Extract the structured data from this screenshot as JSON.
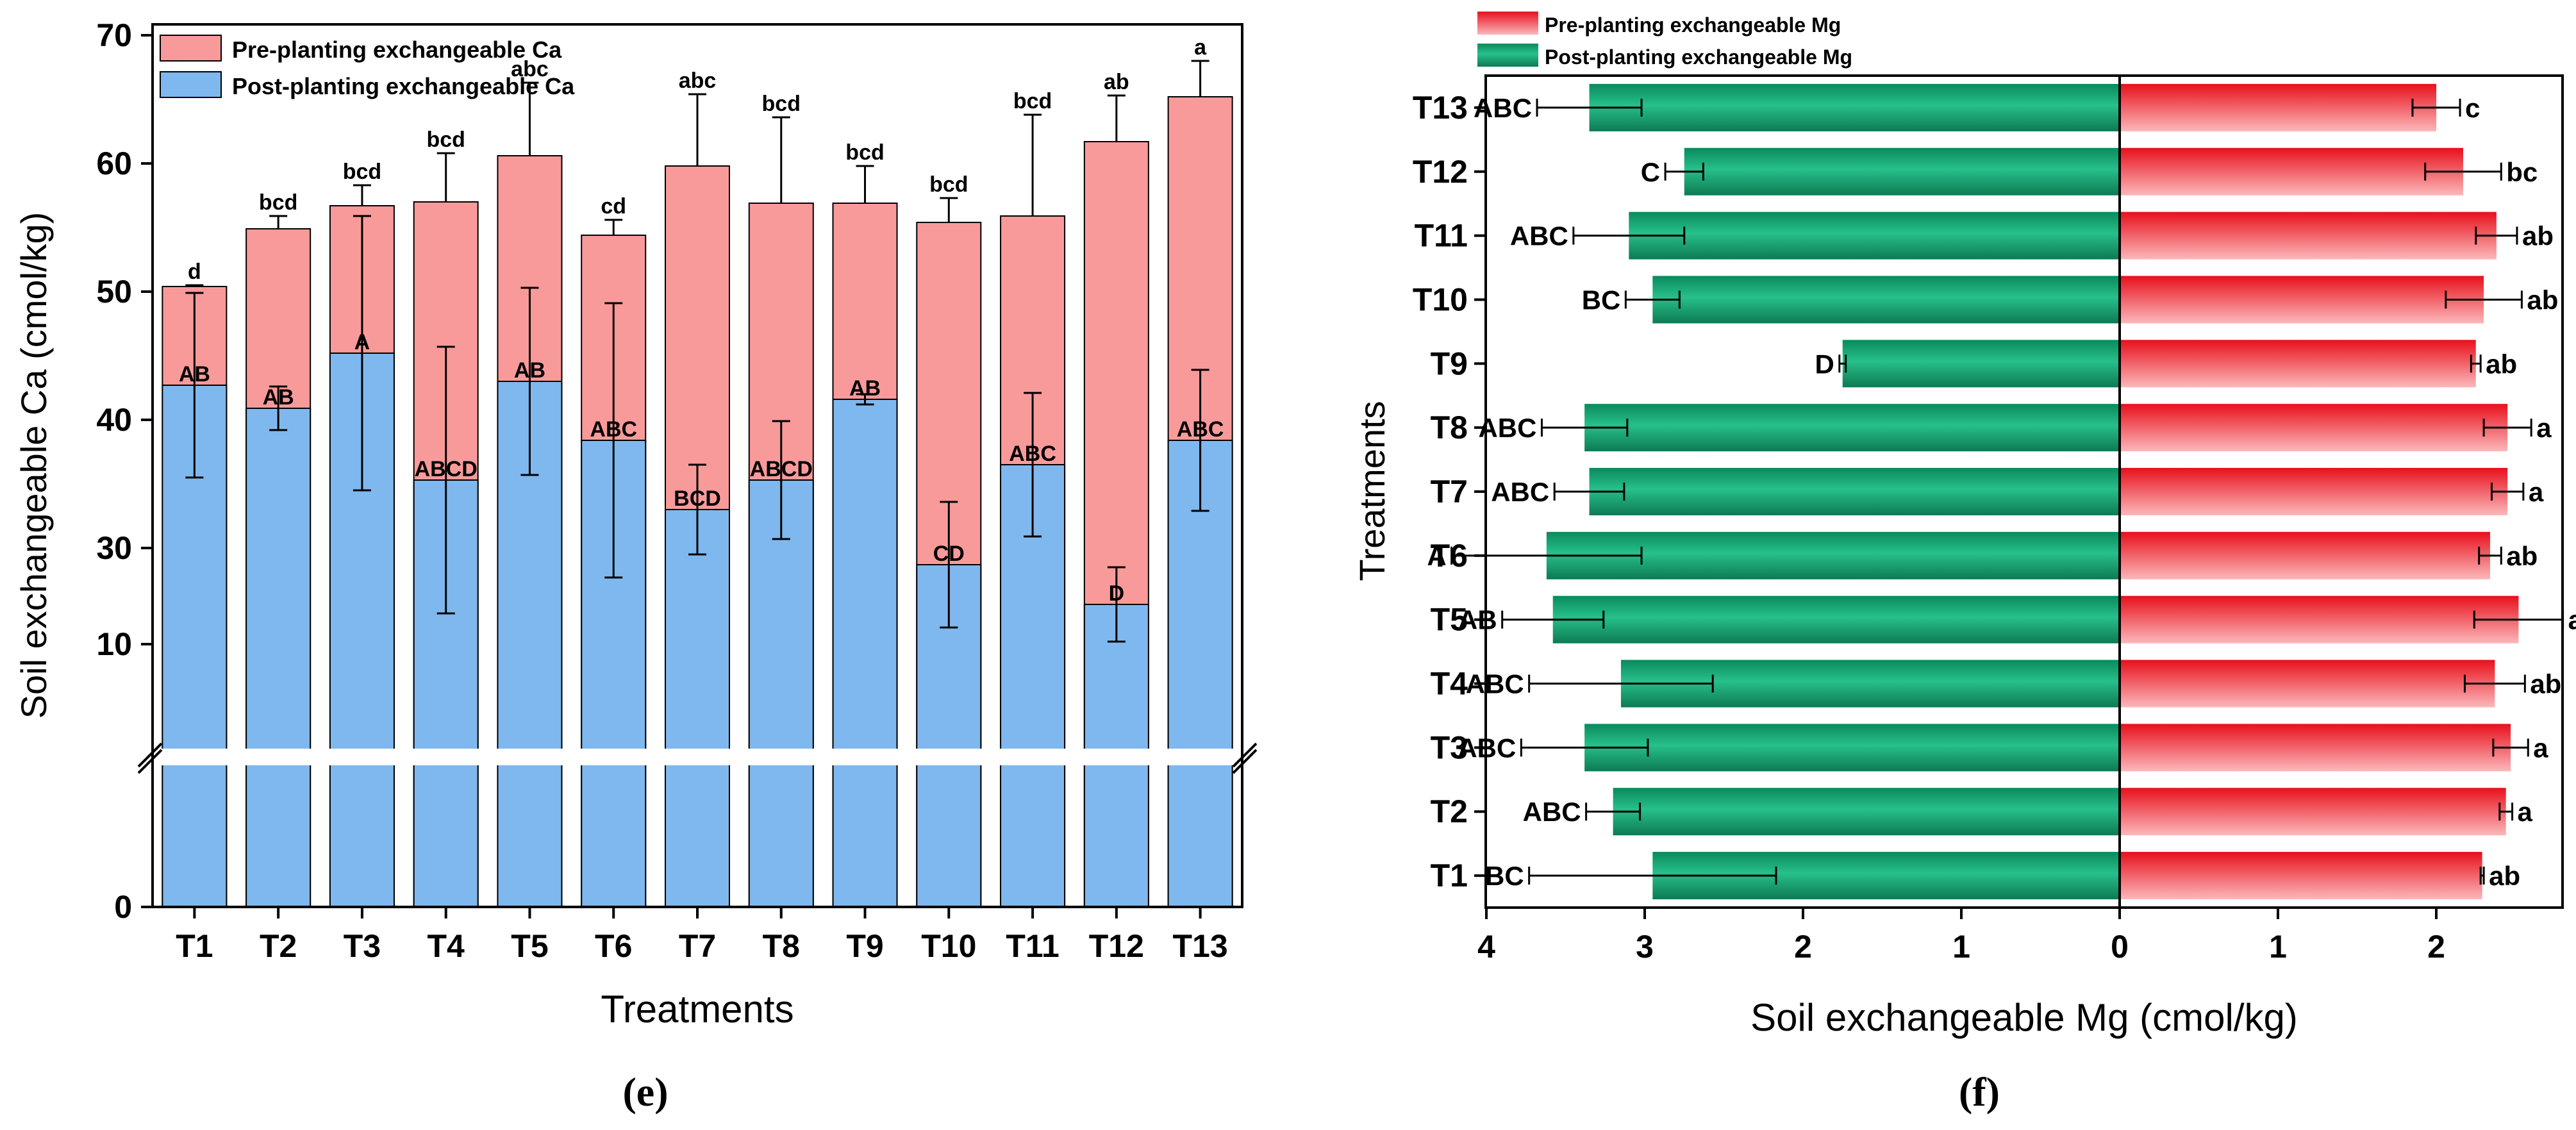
{
  "chart_data": [
    {
      "type": "bar",
      "panel_label": "(e)",
      "xlabel": "Treatments",
      "ylabel": "Soil exchangeable Ca (cmol/kg)",
      "axis_break": [
        10,
        20
      ],
      "ylim": [
        0,
        73
      ],
      "yticks": [
        0,
        10,
        30,
        40,
        50,
        60,
        70
      ],
      "categories": [
        "T1",
        "T2",
        "T3",
        "T4",
        "T5",
        "T6",
        "T7",
        "T8",
        "T9",
        "T10",
        "T11",
        "T12",
        "T13"
      ],
      "legend_position": "top-left",
      "series": [
        {
          "name": "Pre-planting exchangeable Ca",
          "color": "#f99a9a",
          "values": [
            50.4,
            54.9,
            56.7,
            57.0,
            60.6,
            54.4,
            59.8,
            56.9,
            56.9,
            55.4,
            55.9,
            61.7,
            65.2
          ],
          "error": [
            0.1,
            1.0,
            1.6,
            3.8,
            5.7,
            1.2,
            5.6,
            6.7,
            2.9,
            1.9,
            7.9,
            3.6,
            2.8
          ],
          "labels": [
            "d",
            "bcd",
            "bcd",
            "bcd",
            "abc",
            "cd",
            "abc",
            "bcd",
            "bcd",
            "bcd",
            "bcd",
            "ab",
            "a"
          ]
        },
        {
          "name": "Post-planting exchangeable Ca",
          "color": "#7fb8ee",
          "values": [
            42.7,
            40.9,
            45.2,
            35.3,
            43.0,
            38.4,
            33.0,
            35.3,
            41.6,
            28.7,
            36.5,
            25.6,
            38.4
          ],
          "error": [
            7.2,
            1.7,
            10.7,
            10.4,
            7.3,
            10.7,
            3.5,
            4.6,
            0.4,
            4.9,
            5.6,
            2.9,
            5.5
          ],
          "labels": [
            "AB",
            "AB",
            "A",
            "ABCD",
            "AB",
            "ABC",
            "BCD",
            "ABCD",
            "AB",
            "CD",
            "ABC",
            "D",
            "ABC"
          ]
        }
      ]
    },
    {
      "type": "bar",
      "orientation": "horizontal",
      "panel_label": "(f)",
      "xlabel": "Soil exchangeable Mg (cmol/kg)",
      "ylabel": "Treatments",
      "xlim": [
        -4.6,
        3.2
      ],
      "xticks": [
        -4,
        -3,
        -2,
        -1,
        0,
        1,
        2,
        3
      ],
      "xtick_labels": [
        "4",
        "3",
        "2",
        "1",
        "0",
        "1",
        "2",
        "3"
      ],
      "categories": [
        "T1",
        "T2",
        "T3",
        "T4",
        "T5",
        "T6",
        "T7",
        "T8",
        "T9",
        "T10",
        "T11",
        "T12",
        "T13"
      ],
      "legend_position": "top-left",
      "series": [
        {
          "name": "Pre-planting exchangeable Mg",
          "color": "#ec1c24",
          "direction": "right",
          "values": [
            2.29,
            2.44,
            2.47,
            2.37,
            2.52,
            2.34,
            2.45,
            2.45,
            2.25,
            2.3,
            2.38,
            2.17,
            2.0
          ],
          "error": [
            0.01,
            0.04,
            0.11,
            0.19,
            0.28,
            0.07,
            0.1,
            0.15,
            0.03,
            0.24,
            0.13,
            0.24,
            0.15
          ],
          "labels": [
            "ab",
            "a",
            "a",
            "ab",
            "a",
            "ab",
            "a",
            "a",
            "ab",
            "ab",
            "ab",
            "bc",
            "c"
          ]
        },
        {
          "name": "Post-planting exchangeable Mg",
          "color": "#0d9b6a",
          "direction": "left",
          "values": [
            2.95,
            3.2,
            3.38,
            3.15,
            3.58,
            3.62,
            3.35,
            3.38,
            1.75,
            2.95,
            3.1,
            2.75,
            3.35
          ],
          "error": [
            0.78,
            0.17,
            0.4,
            0.58,
            0.32,
            0.6,
            0.22,
            0.27,
            0.02,
            0.17,
            0.35,
            0.12,
            0.33
          ],
          "labels": [
            "BC",
            "ABC",
            "ABC",
            "ABC",
            "AB",
            "A",
            "ABC",
            "ABC",
            "D",
            "BC",
            "ABC",
            "C",
            "ABC"
          ]
        }
      ]
    }
  ]
}
